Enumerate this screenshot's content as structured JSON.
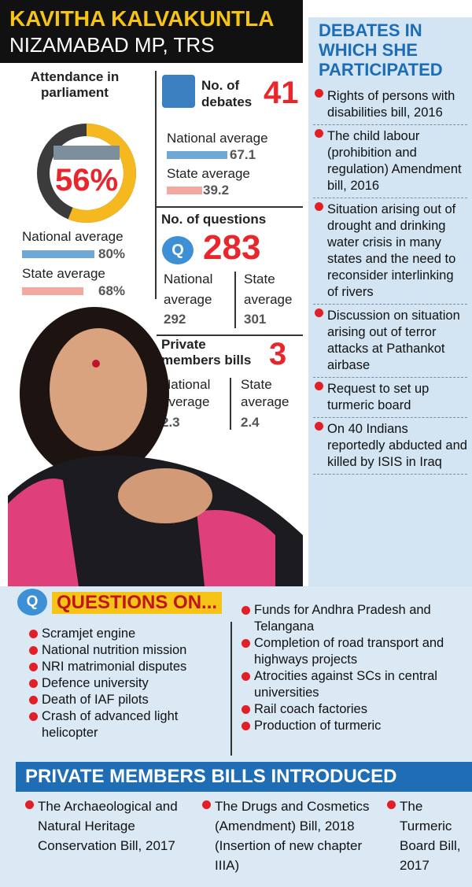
{
  "header": {
    "name": "KAVITHA KALVAKUNTLA",
    "subtitle": "NIZAMABAD MP, TRS"
  },
  "attendance": {
    "label": "Attendance in parliament",
    "value": 56,
    "value_label": "56%",
    "national_average": {
      "label": "National average",
      "value": 80,
      "value_label": "80%"
    },
    "state_average": {
      "label": "State average",
      "value": 68,
      "value_label": "68%"
    }
  },
  "debates": {
    "label": "No. of debates",
    "value": 41,
    "national_average": {
      "label": "National average",
      "value": 67.1
    },
    "state_average": {
      "label": "State average",
      "value": 39.2
    }
  },
  "questions": {
    "label": "No. of questions",
    "value": 283,
    "national_average": {
      "label": "National average",
      "value": 292
    },
    "state_average": {
      "label": "State average",
      "value": 301
    }
  },
  "private_bills": {
    "label": "Private members bills",
    "value": 3,
    "national_average": {
      "label": "National average",
      "value": 2.3
    },
    "state_average": {
      "label": "State average",
      "value": 2.4
    }
  },
  "debates_list": {
    "title": "DEBATES IN WHICH SHE PARTICIPATED",
    "items": [
      "Rights of persons with disabilities bill, 2016",
      "The child labour (prohibition and regulation) Amendment bill, 2016",
      "Situation arising out of drought and drinking water crisis in many states and the need to reconsider interlinking of rivers",
      "Discussion on situation arising out of terror attacks at Pathankot airbase",
      "Request to set up turmeric board",
      "On 40 Indians reportedly abducted and killed by ISIS in Iraq"
    ]
  },
  "questions_on": {
    "title": "QUESTIONS ON...",
    "left": [
      "Scramjet engine",
      "National nutrition mission",
      "NRI matrimonial disputes",
      "Defence university",
      "Death of IAF pilots",
      "Crash of advanced light helicopter"
    ],
    "right": [
      "Funds for Andhra Pradesh and Telangana",
      "Completion of road transport and highways projects",
      "Atrocities against SCs in central universities",
      "Rail coach factories",
      "Production of turmeric"
    ]
  },
  "bills_introduced": {
    "title": "PRIVATE MEMBERS BILLS INTRODUCED",
    "items": [
      "The Archaeological and Natural Heritage Conservation Bill, 2017",
      "The Drugs and Cosmetics (Amendment) Bill, 2018 (Insertion of new chapter IIIA)",
      "The Turmeric Board Bill, 2017"
    ]
  }
}
